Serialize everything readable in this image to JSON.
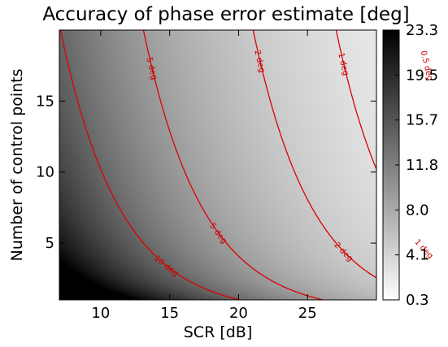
{
  "chart_data": {
    "type": "heatmap",
    "title": "Accuracy of phase error estimate [deg]",
    "xlabel": "SCR [dB]",
    "ylabel": "Number of control points",
    "xlim": [
      7,
      30
    ],
    "ylim": [
      1,
      20
    ],
    "xticks": [
      10,
      15,
      20,
      25
    ],
    "yticks": [
      5,
      10,
      15
    ],
    "colorbar": {
      "colormap": "grayscale-reversed",
      "range": [
        0.3,
        23.3
      ],
      "ticks": [
        "23.3",
        "19.5",
        "15.7",
        "11.8",
        "8.0",
        "4.1",
        "0.3"
      ]
    },
    "contours": [
      {
        "level": 10,
        "label": "10 deg",
        "color": "#dd0000"
      },
      {
        "level": 5,
        "label": "5 deg",
        "color": "#dd0000"
      },
      {
        "level": 2,
        "label": "2 deg",
        "color": "#dd0000"
      },
      {
        "level": 1,
        "label": "1 deg",
        "color": "#dd0000"
      },
      {
        "level": 0.5,
        "label": "0.5 deg",
        "color": "#dd0000"
      }
    ],
    "contour_label_texts": [
      "10 deg",
      "5 deg",
      "5 deg",
      "2 deg",
      "2 deg",
      "1 deg",
      "1 deg",
      "0.5 deg"
    ],
    "grid": false
  }
}
